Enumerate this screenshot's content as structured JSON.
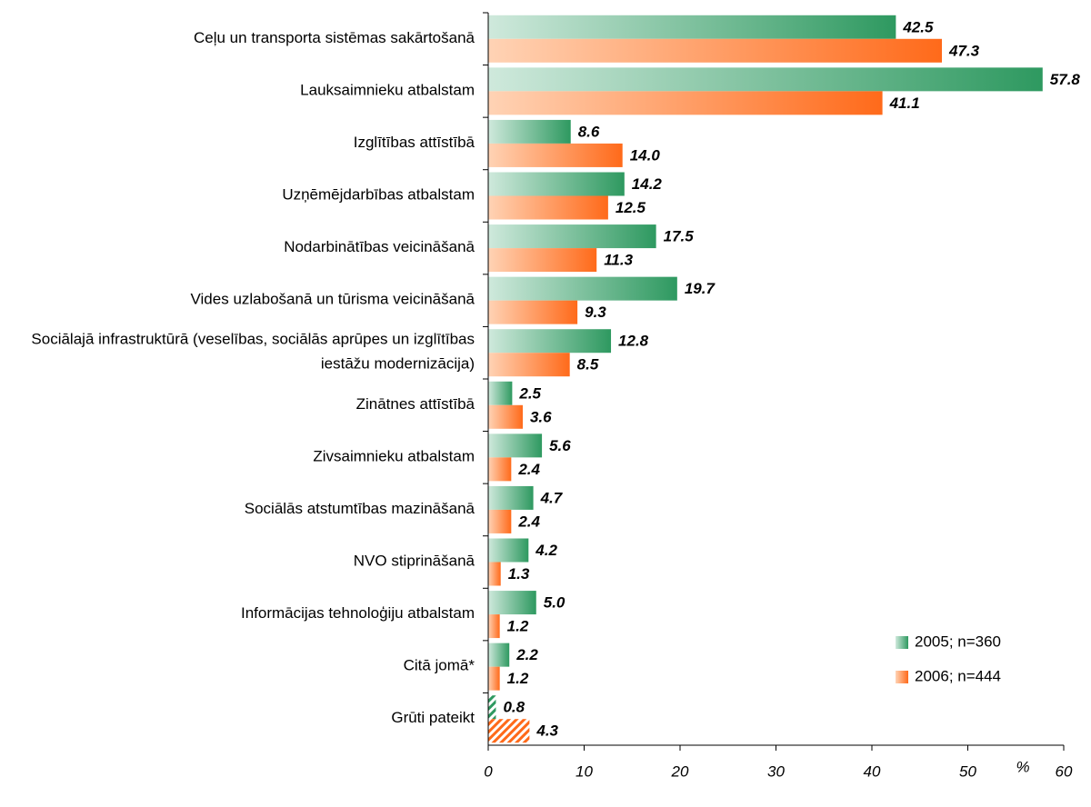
{
  "chart_data": {
    "type": "barh",
    "categories": [
      "Ceļu un transporta sistēmas sakārtošanā",
      "Lauksaimnieku atbalstam",
      "Izglītības attīstībā",
      "Uzņēmējdarbības atbalstam",
      "Nodarbinātības veicināšanā",
      "Vides uzlabošanā un tūrisma veicināšanā",
      "Sociālajā infrastruktūrā (veselības, sociālās aprūpes un izglītības iestāžu modernizācija)",
      "Zinātnes attīstībā",
      "Zivsaimnieku atbalstam",
      "Sociālās atstumtības mazināšanā",
      "NVO stiprināšanā",
      "Informācijas tehnoloģiju atbalstam",
      "Citā jomā*",
      "Grūti pateikt"
    ],
    "series": [
      {
        "name": "2005; n=360",
        "color": "#2e9960",
        "color_light": "#cfe9dc",
        "values": [
          42.5,
          57.8,
          8.6,
          14.2,
          17.5,
          19.7,
          12.8,
          2.5,
          5.6,
          4.7,
          4.2,
          5.0,
          2.2,
          0.8
        ],
        "value_labels": [
          "42.5",
          "57.8",
          "8.6",
          "14.2",
          "17.5",
          "19.7",
          "12.8",
          "2.5",
          "5.6",
          "4.7",
          "4.2",
          "5.0",
          "2.2",
          "0.8"
        ]
      },
      {
        "name": "2006; n=444",
        "color": "#ff6a1a",
        "color_light": "#ffd3b5",
        "values": [
          47.3,
          41.1,
          14.0,
          12.5,
          11.3,
          9.3,
          8.5,
          3.6,
          2.4,
          2.4,
          1.3,
          1.2,
          1.2,
          4.3
        ],
        "value_labels": [
          "47.3",
          "41.1",
          "14.0",
          "12.5",
          "11.3",
          "9.3",
          "8.5",
          "3.6",
          "2.4",
          "2.4",
          "1.3",
          "1.2",
          "1.2",
          "4.3"
        ]
      }
    ],
    "hatched_category": "Grūti pateikt",
    "xlabel": "%",
    "xlim": [
      0,
      60
    ],
    "xticks": [
      0,
      10,
      20,
      30,
      40,
      50,
      60
    ],
    "legend": "lower right"
  }
}
